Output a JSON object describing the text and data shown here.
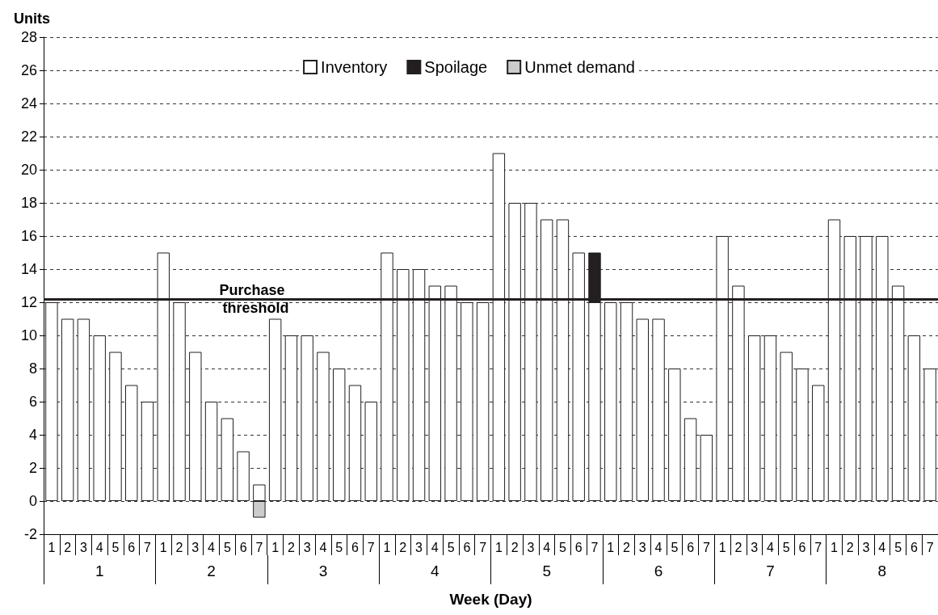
{
  "chart_data": {
    "type": "bar",
    "stacked": true,
    "ylabel": "Units",
    "xlabel": "Week (Day)",
    "categories": [
      "1",
      "2",
      "3",
      "4",
      "5",
      "6",
      "7",
      "1",
      "2",
      "3",
      "4",
      "5",
      "6",
      "7",
      "1",
      "2",
      "3",
      "4",
      "5",
      "6",
      "7",
      "1",
      "2",
      "3",
      "4",
      "5",
      "6",
      "7",
      "1",
      "2",
      "3",
      "4",
      "5",
      "6",
      "7",
      "1",
      "2",
      "3",
      "4",
      "5",
      "6",
      "7",
      "1",
      "2",
      "3",
      "4",
      "5",
      "6",
      "7",
      "1",
      "2",
      "3",
      "4",
      "5",
      "6",
      "7"
    ],
    "annotations": [
      "1",
      "2",
      "3",
      "4",
      "5",
      "6",
      "7",
      "8"
    ],
    "series": [
      {
        "name": "Inventory",
        "color": "#ffffff",
        "values": [
          12,
          11,
          11,
          10,
          9,
          7,
          6,
          15,
          12,
          9,
          6,
          5,
          3,
          1,
          11,
          10,
          10,
          9,
          8,
          7,
          6,
          15,
          14,
          14,
          13,
          13,
          12,
          12,
          21,
          18,
          18,
          17,
          17,
          15,
          12,
          12,
          12,
          11,
          11,
          8,
          5,
          4,
          16,
          13,
          10,
          10,
          9,
          8,
          7,
          17,
          16,
          16,
          16,
          13,
          10,
          8
        ]
      },
      {
        "name": "Spoilage",
        "color": "#231f20",
        "values": [
          null,
          null,
          null,
          null,
          null,
          null,
          null,
          null,
          null,
          null,
          null,
          null,
          null,
          null,
          null,
          null,
          null,
          null,
          null,
          null,
          null,
          null,
          null,
          null,
          null,
          null,
          null,
          null,
          null,
          null,
          null,
          null,
          null,
          null,
          3,
          null,
          null,
          null,
          null,
          null,
          null,
          null,
          null,
          null,
          null,
          null,
          null,
          null,
          null,
          null,
          null,
          null,
          null,
          null,
          null,
          null
        ]
      },
      {
        "name": "Unmet demand",
        "color": "#cccccc",
        "values": [
          null,
          null,
          null,
          null,
          null,
          null,
          null,
          null,
          null,
          null,
          null,
          null,
          null,
          -1,
          null,
          null,
          null,
          null,
          null,
          null,
          null,
          null,
          null,
          null,
          null,
          null,
          null,
          null,
          null,
          null,
          null,
          null,
          null,
          null,
          null,
          null,
          null,
          null,
          null,
          null,
          null,
          null,
          null,
          null,
          null,
          null,
          null,
          null,
          null,
          null,
          null,
          null,
          null,
          null,
          null,
          null
        ]
      }
    ],
    "ylim": [
      -2,
      28
    ],
    "yticks": [
      -2,
      0,
      2,
      4,
      6,
      8,
      10,
      12,
      14,
      16,
      18,
      20,
      22,
      24,
      26,
      28
    ],
    "grid": "y",
    "legend": "top",
    "ref_lines": [
      {
        "axis": "y",
        "value": 12.2,
        "label": "Purchase threshold",
        "color": "#231f20",
        "line_style": "solid"
      }
    ]
  }
}
